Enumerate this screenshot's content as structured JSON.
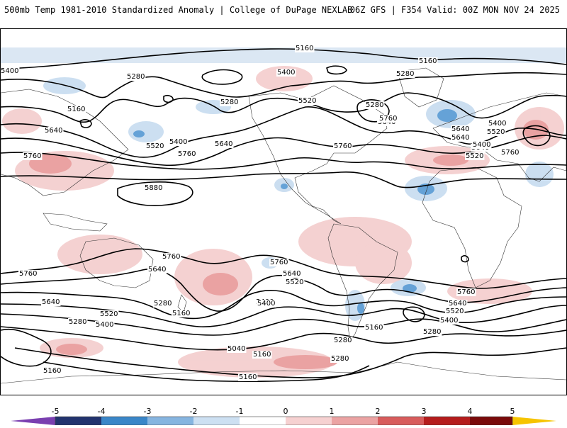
{
  "header": {
    "title_left": "500mb Temp 1981-2010 Standardized Anomaly | College of DuPage NEXLAB",
    "title_right": "06Z GFS | F354 Valid: 00Z MON NOV 24 2025"
  },
  "map": {
    "description_field": "500mb height contours (dam) over temperature standardized anomaly shading",
    "contour_labels": [
      {
        "id": "l1",
        "text": "5160"
      },
      {
        "id": "l2",
        "text": "5160"
      },
      {
        "id": "l3",
        "text": "5280"
      },
      {
        "id": "l4",
        "text": "5400"
      },
      {
        "id": "l5",
        "text": "5280"
      },
      {
        "id": "l6",
        "text": "5520"
      },
      {
        "id": "l7",
        "text": "5280"
      },
      {
        "id": "l8",
        "text": "5160"
      },
      {
        "id": "l9",
        "text": "5280"
      },
      {
        "id": "l10",
        "text": "5640"
      },
      {
        "id": "l11",
        "text": "5520"
      },
      {
        "id": "l12",
        "text": "5400"
      },
      {
        "id": "l13",
        "text": "5640"
      },
      {
        "id": "l14",
        "text": "5760"
      },
      {
        "id": "l15",
        "text": "5760"
      },
      {
        "id": "l16",
        "text": "5640"
      },
      {
        "id": "l17",
        "text": "5760"
      },
      {
        "id": "l18",
        "text": "5880"
      },
      {
        "id": "l19",
        "text": "5400"
      },
      {
        "id": "l20",
        "text": "5520"
      },
      {
        "id": "l21",
        "text": "5640"
      },
      {
        "id": "l22",
        "text": "5760"
      },
      {
        "id": "l23",
        "text": "5760"
      },
      {
        "id": "l24",
        "text": "5640"
      },
      {
        "id": "l25",
        "text": "5760"
      },
      {
        "id": "l26",
        "text": "5640"
      },
      {
        "id": "l27",
        "text": "5520"
      },
      {
        "id": "l28",
        "text": "5280"
      },
      {
        "id": "l29",
        "text": "5400"
      },
      {
        "id": "l30",
        "text": "5760"
      },
      {
        "id": "l31",
        "text": "5640"
      },
      {
        "id": "l32",
        "text": "5520"
      },
      {
        "id": "l33",
        "text": "5400"
      },
      {
        "id": "l34",
        "text": "5280"
      },
      {
        "id": "l35",
        "text": "5160"
      },
      {
        "id": "l36",
        "text": "5400"
      },
      {
        "id": "l37",
        "text": "5280"
      },
      {
        "id": "l38",
        "text": "5040"
      },
      {
        "id": "l39",
        "text": "5160"
      },
      {
        "id": "l40",
        "text": "5280"
      },
      {
        "id": "l41",
        "text": "5280"
      },
      {
        "id": "l42",
        "text": "5160"
      },
      {
        "id": "l43",
        "text": "5160"
      },
      {
        "id": "l44",
        "text": "5760"
      },
      {
        "id": "l45",
        "text": "5640"
      },
      {
        "id": "l46",
        "text": "5520"
      },
      {
        "id": "l47",
        "text": "5400"
      },
      {
        "id": "l48",
        "text": "5280"
      },
      {
        "id": "l49",
        "text": "5640"
      },
      {
        "id": "l50",
        "text": "5520"
      },
      {
        "id": "l51",
        "text": "5400"
      },
      {
        "id": "l52",
        "text": "5760"
      },
      {
        "id": "l53",
        "text": "5640"
      },
      {
        "id": "l54",
        "text": "5400"
      },
      {
        "id": "l55",
        "text": "5160"
      }
    ]
  },
  "colorbar": {
    "ticks": [
      "-5",
      "-4",
      "-3",
      "-2",
      "-1",
      "0",
      "1",
      "2",
      "3",
      "4",
      "5"
    ],
    "colors": [
      "#7a3fb0",
      "#22336e",
      "#3a86c8",
      "#86b5e0",
      "#cde0f2",
      "#ffffff",
      "#f6d1d1",
      "#eba3a3",
      "#d85c5c",
      "#b51c1c",
      "#7a0a0a",
      "#f6c400"
    ]
  }
}
